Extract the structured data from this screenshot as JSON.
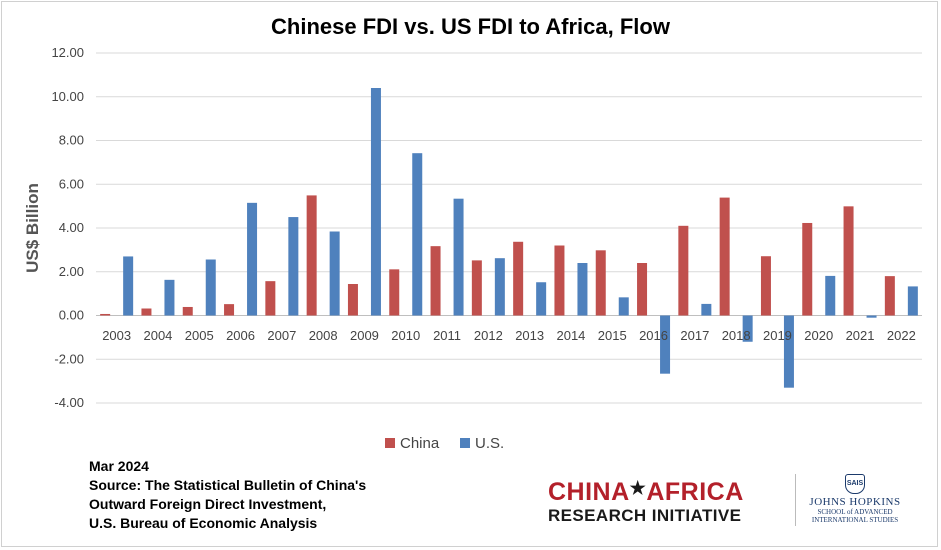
{
  "chart_data": {
    "type": "bar",
    "title": "Chinese FDI vs. US FDI to Africa, Flow",
    "ylabel": "US$ Billion",
    "xlabel": "",
    "ylim": [
      -4,
      12
    ],
    "yticks": [
      "12.00",
      "10.00",
      "8.00",
      "6.00",
      "4.00",
      "2.00",
      "0.00",
      "-2.00",
      "-4.00"
    ],
    "categories": [
      "2003",
      "2004",
      "2005",
      "2006",
      "2007",
      "2008",
      "2009",
      "2010",
      "2011",
      "2012",
      "2013",
      "2014",
      "2015",
      "2016",
      "2017",
      "2018",
      "2019",
      "2020",
      "2021",
      "2022"
    ],
    "series": [
      {
        "name": "China",
        "color": "#c0504d",
        "values": [
          0.07,
          0.32,
          0.39,
          0.52,
          1.57,
          5.49,
          1.44,
          2.11,
          3.17,
          2.52,
          3.37,
          3.2,
          2.98,
          2.4,
          4.1,
          5.39,
          2.71,
          4.23,
          4.99,
          1.8
        ]
      },
      {
        "name": "U.S.",
        "color": "#4f81bd",
        "values": [
          2.7,
          1.63,
          2.56,
          5.15,
          4.5,
          3.84,
          10.4,
          7.42,
          5.34,
          2.62,
          1.52,
          2.4,
          0.83,
          -2.66,
          0.53,
          -1.2,
          -3.3,
          1.81,
          -0.1,
          1.33
        ]
      }
    ],
    "grid": true,
    "legend_position": "bottom"
  },
  "source": {
    "date": "Mar 2024",
    "lines": [
      "Source: The Statistical Bulletin of China's",
      "Outward Foreign Direct Investment,",
      "U.S. Bureau of Economic Analysis"
    ]
  },
  "logos": {
    "car_top_left": "CHINA",
    "car_star": "★",
    "car_top_right": "AFRICA",
    "car_bottom": "RESEARCH INITIATIVE",
    "jhu_seal": "SAIS",
    "jhu_name": "JOHNS HOPKINS",
    "jhu_sub1": "SCHOOL of ADVANCED",
    "jhu_sub2": "INTERNATIONAL STUDIES"
  }
}
